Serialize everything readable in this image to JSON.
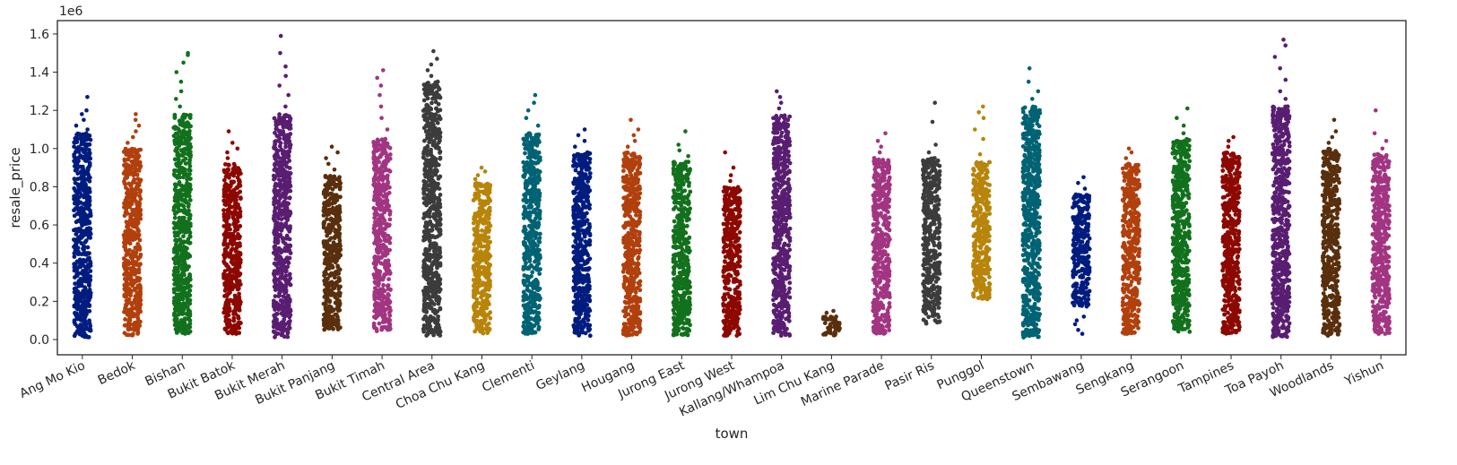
{
  "chart_data": {
    "type": "scatter",
    "subtype": "strip",
    "xlabel": "town",
    "ylabel": "resale_price",
    "y_offset_text": "1e6",
    "ylim": [
      -0.08,
      1.67
    ],
    "yticks": [
      0.0,
      0.2,
      0.4,
      0.6,
      0.8,
      1.0,
      1.2,
      1.4,
      1.6
    ],
    "ytick_labels": [
      "0.0",
      "0.2",
      "0.4",
      "0.6",
      "0.8",
      "1.0",
      "1.2",
      "1.4",
      "1.6"
    ],
    "grid": false,
    "categories": [
      "Ang Mo Kio",
      "Bedok",
      "Bishan",
      "Bukit Batok",
      "Bukit Merah",
      "Bukit Panjang",
      "Bukit Timah",
      "Central Area",
      "Choa Chu Kang",
      "Clementi",
      "Geylang",
      "Hougang",
      "Jurong East",
      "Jurong West",
      "Kallang/Whampoa",
      "Lim Chu Kang",
      "Marine Parade",
      "Pasir Ris",
      "Punggol",
      "Queenstown",
      "Sembawang",
      "Sengkang",
      "Serangoon",
      "Tampines",
      "Toa Payoh",
      "Woodlands",
      "Yishun"
    ],
    "series": [
      {
        "town": "Ang Mo Kio",
        "color": "#001c7f",
        "min": 0.01,
        "dense_max": 1.08,
        "outliers": [
          1.1,
          1.12,
          1.15,
          1.18,
          1.2,
          1.27
        ]
      },
      {
        "town": "Bedok",
        "color": "#b1400d",
        "min": 0.02,
        "dense_max": 1.0,
        "outliers": [
          1.03,
          1.06,
          1.09,
          1.12,
          1.15,
          1.18
        ]
      },
      {
        "town": "Bishan",
        "color": "#12711c",
        "min": 0.03,
        "dense_max": 1.18,
        "outliers": [
          1.22,
          1.26,
          1.3,
          1.35,
          1.4,
          1.45,
          1.49,
          1.5
        ]
      },
      {
        "town": "Bukit Batok",
        "color": "#8c0800",
        "min": 0.03,
        "dense_max": 0.92,
        "outliers": [
          0.95,
          0.98,
          1.0,
          1.03,
          1.09
        ]
      },
      {
        "town": "Bukit Merah",
        "color": "#591e71",
        "min": 0.01,
        "dense_max": 1.18,
        "outliers": [
          1.22,
          1.28,
          1.33,
          1.38,
          1.43,
          1.5,
          1.59
        ]
      },
      {
        "town": "Bukit Panjang",
        "color": "#592f0d",
        "min": 0.05,
        "dense_max": 0.86,
        "outliers": [
          0.89,
          0.92,
          0.95,
          0.98,
          1.01
        ]
      },
      {
        "town": "Bukit Timah",
        "color": "#a23582",
        "min": 0.04,
        "dense_max": 1.05,
        "outliers": [
          1.1,
          1.16,
          1.22,
          1.28,
          1.33,
          1.37,
          1.41
        ]
      },
      {
        "town": "Central Area",
        "color": "#3c3c3c",
        "min": 0.02,
        "dense_max": 1.35,
        "outliers": [
          1.38,
          1.41,
          1.44,
          1.47,
          1.51
        ]
      },
      {
        "town": "Choa Chu Kang",
        "color": "#b8850a",
        "min": 0.03,
        "dense_max": 0.82,
        "outliers": [
          0.84,
          0.86,
          0.88,
          0.9
        ]
      },
      {
        "town": "Clementi",
        "color": "#006374",
        "min": 0.03,
        "dense_max": 1.08,
        "outliers": [
          1.12,
          1.16,
          1.2,
          1.24,
          1.28
        ]
      },
      {
        "town": "Geylang",
        "color": "#001c7f",
        "min": 0.01,
        "dense_max": 0.98,
        "outliers": [
          1.01,
          1.04,
          1.07,
          1.1
        ]
      },
      {
        "town": "Hougang",
        "color": "#b1400d",
        "min": 0.02,
        "dense_max": 0.98,
        "outliers": [
          1.01,
          1.04,
          1.07,
          1.1,
          1.15
        ]
      },
      {
        "town": "Jurong East",
        "color": "#12711c",
        "min": 0.02,
        "dense_max": 0.93,
        "outliers": [
          0.96,
          0.99,
          1.02,
          1.09
        ]
      },
      {
        "town": "Jurong West",
        "color": "#8c0800",
        "min": 0.02,
        "dense_max": 0.8,
        "outliers": [
          0.83,
          0.86,
          0.9,
          0.98
        ]
      },
      {
        "town": "Kallang/Whampoa",
        "color": "#591e71",
        "min": 0.02,
        "dense_max": 1.18,
        "outliers": [
          1.21,
          1.24,
          1.27,
          1.3
        ]
      },
      {
        "town": "Lim Chu Kang",
        "color": "#592f0d",
        "min": 0.02,
        "dense_max": 0.12,
        "outliers": [
          0.14,
          0.15
        ]
      },
      {
        "town": "Marine Parade",
        "color": "#a23582",
        "min": 0.03,
        "dense_max": 0.95,
        "outliers": [
          0.98,
          1.01,
          1.04,
          1.08
        ]
      },
      {
        "town": "Pasir Ris",
        "color": "#3c3c3c",
        "min": 0.08,
        "dense_max": 0.95,
        "outliers": [
          0.98,
          1.02,
          1.14,
          1.24
        ]
      },
      {
        "town": "Punggol",
        "color": "#b8850a",
        "min": 0.21,
        "dense_max": 0.93,
        "outliers": [
          0.97,
          1.05,
          1.1,
          1.16,
          1.19,
          1.22
        ]
      },
      {
        "town": "Queenstown",
        "color": "#006374",
        "min": 0.01,
        "dense_max": 1.22,
        "outliers": [
          1.26,
          1.3,
          1.35,
          1.42
        ]
      },
      {
        "town": "Sembawang",
        "color": "#001c7f",
        "min": 0.17,
        "dense_max": 0.76,
        "outliers": [
          0.03,
          0.05,
          0.08,
          0.1,
          0.12,
          0.79,
          0.82,
          0.85
        ]
      },
      {
        "town": "Sengkang",
        "color": "#b1400d",
        "min": 0.03,
        "dense_max": 0.92,
        "outliers": [
          0.95,
          0.98,
          1.0
        ]
      },
      {
        "town": "Serangoon",
        "color": "#12711c",
        "min": 0.03,
        "dense_max": 1.05,
        "outliers": [
          1.08,
          1.12,
          1.16,
          1.21
        ]
      },
      {
        "town": "Tampines",
        "color": "#8c0800",
        "min": 0.03,
        "dense_max": 0.98,
        "outliers": [
          1.01,
          1.04,
          1.06
        ]
      },
      {
        "town": "Toa Payoh",
        "color": "#591e71",
        "min": 0.01,
        "dense_max": 1.22,
        "outliers": [
          1.26,
          1.3,
          1.36,
          1.42,
          1.48,
          1.54,
          1.57
        ]
      },
      {
        "town": "Woodlands",
        "color": "#592f0d",
        "min": 0.02,
        "dense_max": 1.0,
        "outliers": [
          1.03,
          1.06,
          1.09,
          1.15
        ]
      },
      {
        "town": "Yishun",
        "color": "#a23582",
        "min": 0.03,
        "dense_max": 0.97,
        "outliers": [
          1.0,
          1.04,
          1.08,
          1.2
        ]
      }
    ]
  }
}
